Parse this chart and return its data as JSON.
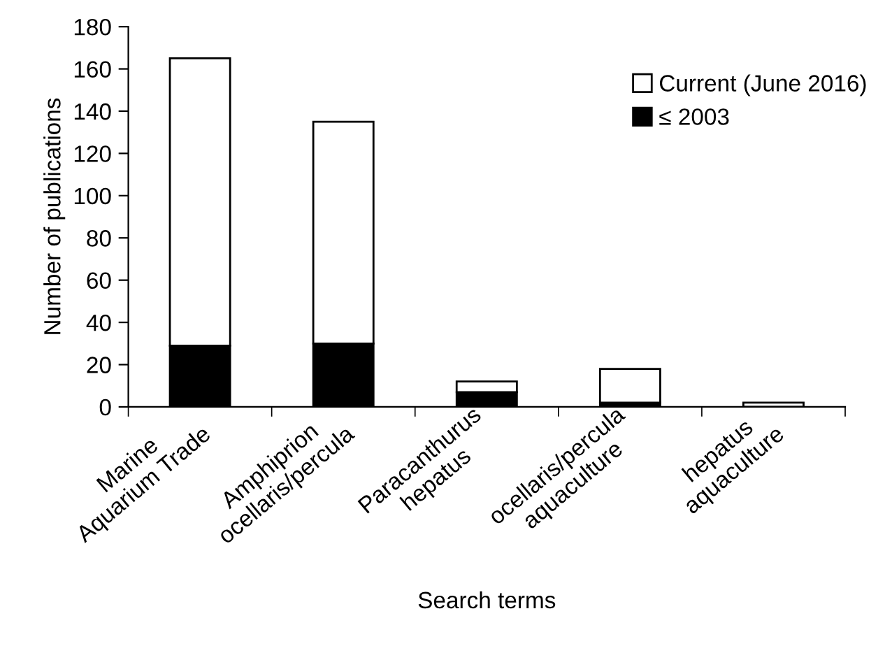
{
  "chart_data": {
    "type": "bar",
    "stacked": true,
    "xlabel": "Search terms",
    "ylabel": "Number of publications",
    "categories": [
      "Marine\nAquarium Trade",
      "Amphiprion\nocellaris/percula",
      "Paracanthurus\nhepatus",
      "ocellaris/percula\naquaculture",
      "hepatus\naquaculture"
    ],
    "series": [
      {
        "name": "≤ 2003",
        "color": "#000000",
        "values": [
          29,
          30,
          7,
          2,
          0
        ]
      },
      {
        "name": "Current (June 2016)",
        "color": "#ffffff",
        "values": [
          136,
          105,
          5,
          16,
          2
        ]
      }
    ],
    "ylim": [
      0,
      180
    ],
    "yticks": [
      0,
      20,
      40,
      60,
      80,
      100,
      120,
      140,
      160,
      180
    ],
    "grid": false,
    "legend": "top right"
  }
}
